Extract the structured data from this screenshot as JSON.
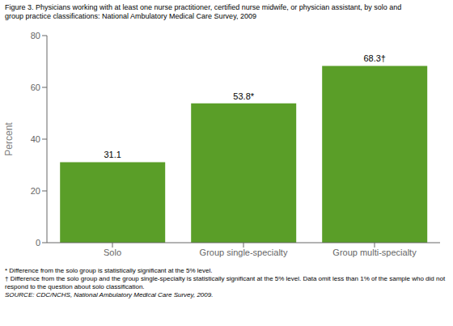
{
  "chart_data": {
    "type": "bar",
    "title": "Figure 3. Physicians working with at least one nurse practitioner, certified nurse midwife, or physician assistant, by solo and",
    "subtitle": "group practice classifications: National  Ambulatory Medical Care Survey, 2009",
    "categories": [
      "Solo",
      "Group single-specialty",
      "Group multi-specialty"
    ],
    "values": [
      31.1,
      53.8,
      68.3
    ],
    "value_labels": [
      "31.1",
      "53.8*",
      "68.3†"
    ],
    "data_labels": true,
    "color": "#5a9e28",
    "ylabel": "Percent",
    "ylim": [
      0,
      80
    ],
    "yticks": [
      0,
      20,
      40,
      60,
      80
    ],
    "grid": false,
    "annotations": [
      "* Difference from the solo group is statistically significant at the 5% level.",
      "† Difference from the solo group and the group single-specialty is statistically significant at the 5% level. Data omit less than 1% of the sample who did not",
      "respond to the question about solo classification.",
      "SOURCE: CDC/NCHS, National Ambulatory Medical Care Survey, 2009."
    ]
  }
}
